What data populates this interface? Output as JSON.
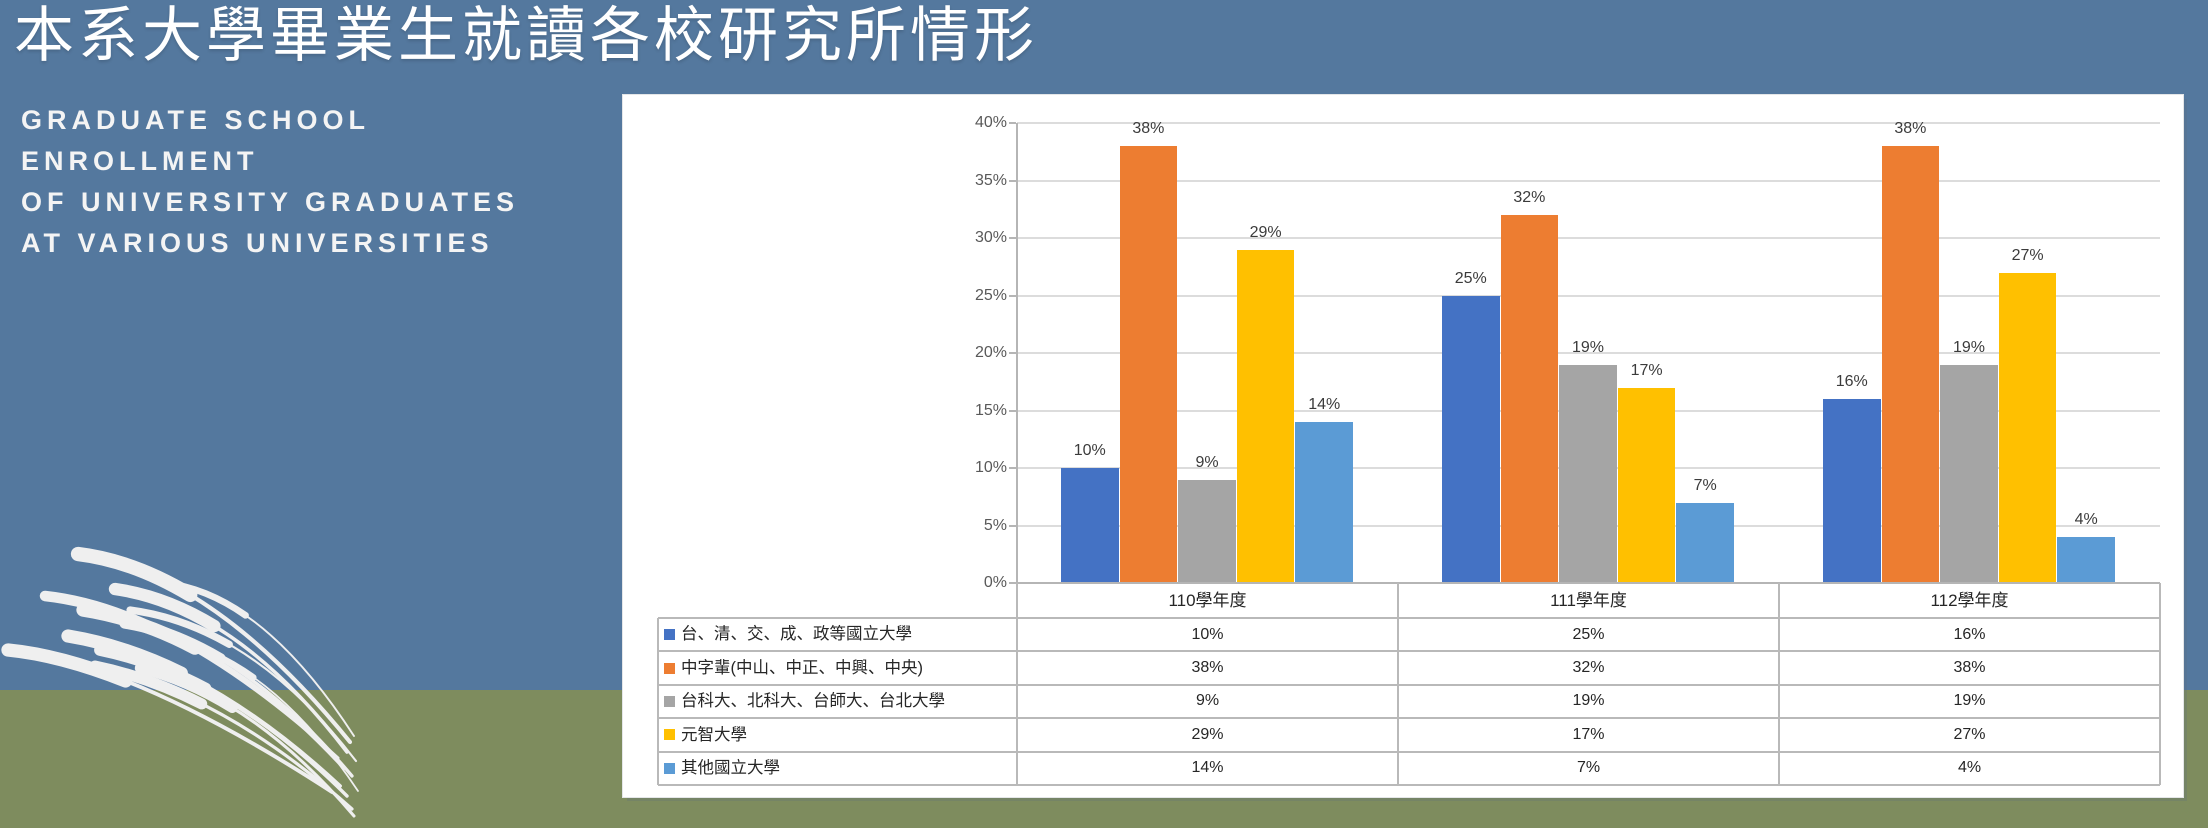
{
  "slide": {
    "title": "本系大學畢業生就讀各校研究所情形",
    "subtitle_lines": [
      "GRADUATE SCHOOL",
      "ENROLLMENT",
      "OF UNIVERSITY GRADUATES",
      "AT VARIOUS UNIVERSITIES"
    ],
    "colors": {
      "background_top": "#54789E",
      "background_bottom": "#7E8C5E",
      "panel": "#FFFFFF",
      "decoration": "#EFEFEF",
      "title_text": "#FFFFFF"
    }
  },
  "chart_data": {
    "type": "bar",
    "title": "",
    "categories": [
      "110學年度",
      "111學年度",
      "112學年度"
    ],
    "series": [
      {
        "name": "台、清、交、成、政等國立大學",
        "color": "#4472C4",
        "values": [
          10,
          25,
          16
        ]
      },
      {
        "name": "中字輩(中山、中正、中興、中央)",
        "color": "#ED7D31",
        "values": [
          38,
          32,
          38
        ]
      },
      {
        "name": "台科大、北科大、台師大、台北大學",
        "color": "#A5A5A5",
        "values": [
          9,
          19,
          19
        ]
      },
      {
        "name": "元智大學",
        "color": "#FFC000",
        "values": [
          29,
          17,
          27
        ]
      },
      {
        "name": "其他國立大學",
        "color": "#5B9BD5",
        "values": [
          14,
          7,
          4
        ]
      }
    ],
    "value_suffix": "%",
    "ylim": [
      0,
      40
    ],
    "ytick_step": 5,
    "ytick_labels": [
      "0%",
      "5%",
      "10%",
      "15%",
      "20%",
      "25%",
      "30%",
      "35%",
      "40%"
    ],
    "grid": true,
    "data_labels": true,
    "legend_position": "table-below",
    "axis_label_color": "#595959",
    "data_label_color": "#3B3B3B"
  }
}
